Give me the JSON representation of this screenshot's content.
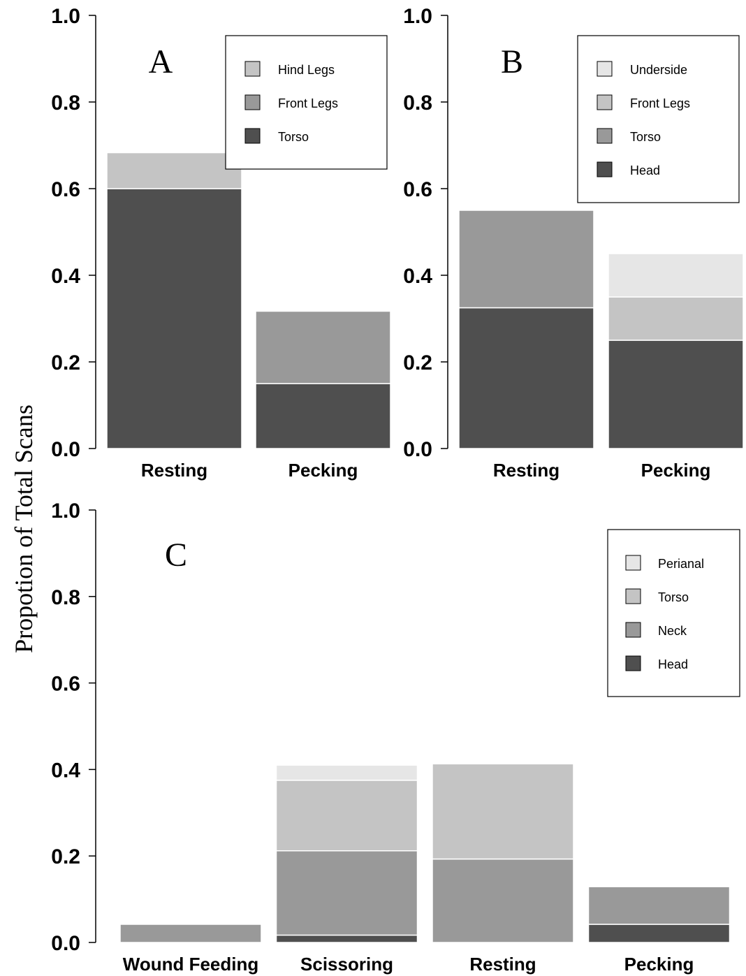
{
  "colors": {
    "Torso_A": "#4f4f4f",
    "dark": "#4f4f4f",
    "mid": "#999999",
    "light": "#c4c4c4",
    "lightest": "#e6e6e6"
  },
  "ylabel": "Propotion of Total Scans",
  "chart_data": [
    {
      "type": "bar",
      "panel": "A",
      "stacked": true,
      "categories": [
        "Resting",
        "Pecking"
      ],
      "ylim": [
        0,
        1.0
      ],
      "yticks": [
        "0.0",
        "0.2",
        "0.4",
        "0.6",
        "0.8",
        "1.0"
      ],
      "legend_position": "top-right",
      "legend": [
        "Hind Legs",
        "Front Legs",
        "Torso"
      ],
      "series": [
        {
          "name": "Torso",
          "color": "#4f4f4f",
          "values": [
            0.6,
            0.15
          ]
        },
        {
          "name": "Front Legs",
          "color": "#999999",
          "values": [
            0.0,
            0.167
          ]
        },
        {
          "name": "Hind Legs",
          "color": "#c4c4c4",
          "values": [
            0.083,
            0.0
          ]
        }
      ]
    },
    {
      "type": "bar",
      "panel": "B",
      "stacked": true,
      "categories": [
        "Resting",
        "Pecking"
      ],
      "ylim": [
        0,
        1.0
      ],
      "yticks": [
        "0.0",
        "0.2",
        "0.4",
        "0.6",
        "0.8",
        "1.0"
      ],
      "legend_position": "top-right",
      "legend": [
        "Underside",
        "Front Legs",
        "Torso",
        "Head"
      ],
      "series": [
        {
          "name": "Head",
          "color": "#4f4f4f",
          "values": [
            0.325,
            0.25
          ]
        },
        {
          "name": "Torso",
          "color": "#999999",
          "values": [
            0.225,
            0.0
          ]
        },
        {
          "name": "Front Legs",
          "color": "#c4c4c4",
          "values": [
            0.0,
            0.1
          ]
        },
        {
          "name": "Underside",
          "color": "#e6e6e6",
          "values": [
            0.0,
            0.1
          ]
        }
      ]
    },
    {
      "type": "bar",
      "panel": "C",
      "stacked": true,
      "categories": [
        "Wound Feeding",
        "Scissoring",
        "Resting",
        "Pecking"
      ],
      "ylim": [
        0,
        1.0
      ],
      "yticks": [
        "0.0",
        "0.2",
        "0.4",
        "0.6",
        "0.8",
        "1.0"
      ],
      "legend_position": "top-right",
      "legend": [
        "Perianal",
        "Torso",
        "Neck",
        "Head"
      ],
      "series": [
        {
          "name": "Head",
          "color": "#4f4f4f",
          "values": [
            0.0,
            0.017,
            0.0,
            0.042
          ]
        },
        {
          "name": "Neck",
          "color": "#999999",
          "values": [
            0.042,
            0.195,
            0.193,
            0.087
          ]
        },
        {
          "name": "Torso",
          "color": "#c4c4c4",
          "values": [
            0.0,
            0.163,
            0.22,
            0.0
          ]
        },
        {
          "name": "Perianal",
          "color": "#e6e6e6",
          "values": [
            0.0,
            0.035,
            0.0,
            0.0
          ]
        }
      ]
    }
  ]
}
